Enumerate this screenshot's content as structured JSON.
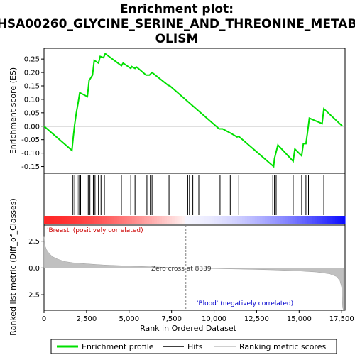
{
  "title_lines": [
    "Enrichment plot:",
    "HSA00260_GLYCINE_SERINE_AND_THREONINE_METAB",
    "OLISM"
  ],
  "colors": {
    "es_line": "#00e000",
    "hit": "#000000",
    "metric_fill": "#c0c0c0",
    "pos_label": "#cc0000",
    "neg_label": "#0000cc",
    "zero_line": "#808080",
    "heat_red": "#ff0000",
    "heat_blue": "#0000ff"
  },
  "chart_data": [
    {
      "type": "line",
      "name": "enrichment-plot",
      "ylabel": "Enrichment score (ES)",
      "xlim": [
        0,
        17700
      ],
      "ylim": [
        -0.175,
        0.29
      ],
      "yticks": [
        0.25,
        0.2,
        0.15,
        0.1,
        0.05,
        0.0,
        -0.05,
        -0.1,
        -0.15
      ],
      "ytick_labels": [
        "0.25",
        "0.20",
        "0.15",
        "0.10",
        "0.05",
        "0.00",
        "-0.05",
        "-0.10",
        "-0.15"
      ],
      "series": [
        {
          "name": "Enrichment profile",
          "points": [
            [
              0,
              0.0
            ],
            [
              1640,
              -0.09
            ],
            [
              1720,
              -0.04
            ],
            [
              1800,
              0.005
            ],
            [
              1900,
              0.05
            ],
            [
              2000,
              0.085
            ],
            [
              2100,
              0.125
            ],
            [
              2550,
              0.11
            ],
            [
              2650,
              0.17
            ],
            [
              2850,
              0.19
            ],
            [
              2950,
              0.245
            ],
            [
              3200,
              0.235
            ],
            [
              3300,
              0.26
            ],
            [
              3500,
              0.255
            ],
            [
              3600,
              0.27
            ],
            [
              4550,
              0.225
            ],
            [
              4650,
              0.235
            ],
            [
              5100,
              0.215
            ],
            [
              5150,
              0.222
            ],
            [
              5350,
              0.215
            ],
            [
              5450,
              0.22
            ],
            [
              6000,
              0.19
            ],
            [
              6200,
              0.19
            ],
            [
              6350,
              0.2
            ],
            [
              7300,
              0.152
            ],
            [
              7400,
              0.15
            ],
            [
              10300,
              -0.01
            ],
            [
              10500,
              -0.01
            ],
            [
              10950,
              -0.025
            ],
            [
              11350,
              -0.04
            ],
            [
              11450,
              -0.038
            ],
            [
              13500,
              -0.15
            ],
            [
              13550,
              -0.12
            ],
            [
              13650,
              -0.095
            ],
            [
              13750,
              -0.07
            ],
            [
              14650,
              -0.13
            ],
            [
              14750,
              -0.085
            ],
            [
              15150,
              -0.11
            ],
            [
              15250,
              -0.065
            ],
            [
              15400,
              -0.065
            ],
            [
              15500,
              -0.02
            ],
            [
              15600,
              0.03
            ],
            [
              16350,
              0.01
            ],
            [
              16450,
              0.065
            ],
            [
              17550,
              0.0
            ]
          ]
        }
      ]
    },
    {
      "type": "hits",
      "name": "hits",
      "xlim": [
        0,
        17700
      ],
      "positions": [
        1700,
        1800,
        1950,
        2050,
        2150,
        2600,
        2700,
        2900,
        3000,
        3200,
        3350,
        3550,
        4550,
        5100,
        5350,
        6050,
        6250,
        6350,
        7350,
        8450,
        8550,
        8750,
        9100,
        10350,
        10950,
        11450,
        13450,
        13550,
        13650,
        14650,
        15150,
        15400,
        15550,
        16450
      ]
    },
    {
      "type": "area",
      "name": "ranked-list-metric",
      "xlabel": "Rank in Ordered Dataset",
      "ylabel": "Ranked list metric (Diff_of_Classes)",
      "xlim": [
        0,
        17700
      ],
      "ylim": [
        -3.95,
        4.0
      ],
      "xticks": [
        0,
        2500,
        5000,
        7500,
        10000,
        12500,
        15000,
        17500
      ],
      "xtick_labels": [
        "0",
        "2,500",
        "5,000",
        "7,500",
        "10,000",
        "12,500",
        "15,000",
        "17,500"
      ],
      "yticks": [
        2.5,
        0.0,
        -2.5
      ],
      "ytick_labels": [
        "2.5",
        "0.0",
        "-2.5"
      ],
      "points": [
        [
          0,
          2.9
        ],
        [
          50,
          2.1
        ],
        [
          150,
          1.7
        ],
        [
          300,
          1.35
        ],
        [
          500,
          1.05
        ],
        [
          800,
          0.82
        ],
        [
          1200,
          0.6
        ],
        [
          1700,
          0.48
        ],
        [
          2500,
          0.38
        ],
        [
          3500,
          0.28
        ],
        [
          5000,
          0.18
        ],
        [
          6500,
          0.1
        ],
        [
          8339,
          0.0
        ],
        [
          10000,
          -0.06
        ],
        [
          12000,
          -0.12
        ],
        [
          13500,
          -0.18
        ],
        [
          15000,
          -0.28
        ],
        [
          16000,
          -0.38
        ],
        [
          16800,
          -0.55
        ],
        [
          17200,
          -0.8
        ],
        [
          17400,
          -1.2
        ],
        [
          17500,
          -1.8
        ],
        [
          17560,
          -3.7
        ],
        [
          17600,
          -3.9
        ]
      ],
      "zero_cross": 8339,
      "zero_cross_label": "Zero cross at 8339",
      "pos_label": "'Breast' (positively correlated)",
      "neg_label": "'Blood' (negatively correlated)"
    }
  ],
  "legend": {
    "items": [
      {
        "label": "Enrichment profile",
        "color": "#00e000"
      },
      {
        "label": "Hits",
        "color": "#000000"
      },
      {
        "label": "Ranking metric scores",
        "color": "#c0c0c0"
      }
    ]
  }
}
